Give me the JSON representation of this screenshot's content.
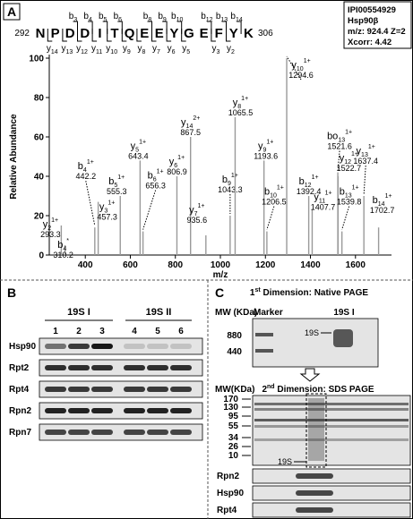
{
  "chart_data": {
    "type": "bar",
    "xlabel": "m/z",
    "ylabel": "Relative Abundance",
    "color": "#9a9a9a",
    "x": [
      293.3,
      310.2,
      442.2,
      457.3,
      555.3,
      643.4,
      656.3,
      806.9,
      867.5,
      935.6,
      1043.3,
      1065.5,
      1193.6,
      1206.5,
      1294.6,
      1392.4,
      1407.7,
      1521.6,
      1522.7,
      1539.8,
      1637.4,
      1702.7
    ],
    "values": [
      15,
      5,
      14,
      27,
      30,
      48,
      12,
      40,
      60,
      10,
      20,
      70,
      48,
      12,
      100,
      30,
      23,
      42,
      40,
      12,
      30,
      14
    ],
    "ion_letters": [
      "y",
      "b",
      "b",
      "y",
      "b",
      "y",
      "b",
      "y",
      "y",
      "y",
      "b",
      "y",
      "y",
      "b",
      "y",
      "b",
      "y",
      "bo",
      "y",
      "b",
      "y",
      "b"
    ],
    "ion_indices": [
      "2",
      "4",
      "4",
      "3",
      "5",
      "5",
      "6",
      "6",
      "14",
      "7",
      "9",
      "8",
      "9",
      "10",
      "10",
      "12",
      "11",
      "13",
      "12",
      "13",
      "13",
      "14"
    ],
    "charges": [
      "1+",
      "*",
      "1+",
      "1+",
      "1+",
      "1+",
      "1+",
      "1+",
      "2+",
      "1+",
      "1+",
      "1+",
      "1+",
      "1+",
      "1+",
      "1+",
      "1+",
      "1+",
      "1+",
      "1+",
      "1+",
      "1+"
    ],
    "xlim": [
      240,
      1760
    ],
    "xticks": [
      400,
      600,
      800,
      1000,
      1200,
      1400,
      1600
    ],
    "ylim": [
      0,
      100
    ],
    "yticks": [
      0,
      20,
      40,
      60,
      80,
      100
    ]
  },
  "panel_a": {
    "label": "A",
    "start": "292",
    "end": "306",
    "sequence": [
      "N",
      "P",
      "D",
      "D",
      "I",
      "T",
      "Q",
      "E",
      "E",
      "Y",
      "G",
      "E",
      "F",
      "Y",
      "K"
    ],
    "b_ions": [
      {
        "ion": "b",
        "n": "3"
      },
      {
        "ion": "b",
        "n": "4"
      },
      {
        "ion": "b",
        "n": "5"
      },
      {
        "ion": "b",
        "n": "6"
      },
      {
        "ion": "b",
        "n": "8"
      },
      {
        "ion": "b",
        "n": "9"
      },
      {
        "ion": "b",
        "n": "10"
      },
      {
        "ion": "b",
        "n": "12"
      },
      {
        "ion": "b",
        "n": "13"
      },
      {
        "ion": "b",
        "n": "14"
      }
    ],
    "y_ions": [
      {
        "ion": "y",
        "n": "14"
      },
      {
        "ion": "y",
        "n": "13"
      },
      {
        "ion": "y",
        "n": "12"
      },
      {
        "ion": "y",
        "n": "11"
      },
      {
        "ion": "y",
        "n": "10"
      },
      {
        "ion": "y",
        "n": "9"
      },
      {
        "ion": "y",
        "n": "8"
      },
      {
        "ion": "y",
        "n": "7"
      },
      {
        "ion": "y",
        "n": "6"
      },
      {
        "ion": "y",
        "n": "5"
      },
      {
        "ion": "y",
        "n": "3"
      },
      {
        "ion": "y",
        "n": "2"
      }
    ],
    "info": [
      "IPI00554929",
      "Hsp90β",
      "m/z: 924.4  Z=2",
      "Xcorr: 4.42"
    ]
  },
  "panel_b": {
    "label": "B",
    "groups": [
      "19S I",
      "19S II"
    ],
    "lanes": [
      "1",
      "2",
      "3",
      "4",
      "5",
      "6"
    ],
    "rows": [
      "Hsp90",
      "Rpt2",
      "Rpt4",
      "Rpn2",
      "Rpn7"
    ]
  },
  "panel_c": {
    "label": "C",
    "dim1": {
      "ordinal": "1",
      "suffix": "st",
      "text": " Dimension: Native PAGE"
    },
    "mw1": "MW (KDa)",
    "marker": "Marker",
    "lane": "19S I",
    "mw1_ticks": [
      "880",
      "440"
    ],
    "band": "19S",
    "dim2": {
      "ordinal": "2",
      "suffix": "nd",
      "text": " Dimension: SDS PAGE"
    },
    "mw2": "MW(KDa)",
    "mw2_ticks": [
      "170",
      "130",
      "95",
      "55",
      "34",
      "26",
      "10"
    ],
    "band2": "19S",
    "rows": [
      "Rpn2",
      "Hsp90",
      "Rpt4"
    ]
  }
}
